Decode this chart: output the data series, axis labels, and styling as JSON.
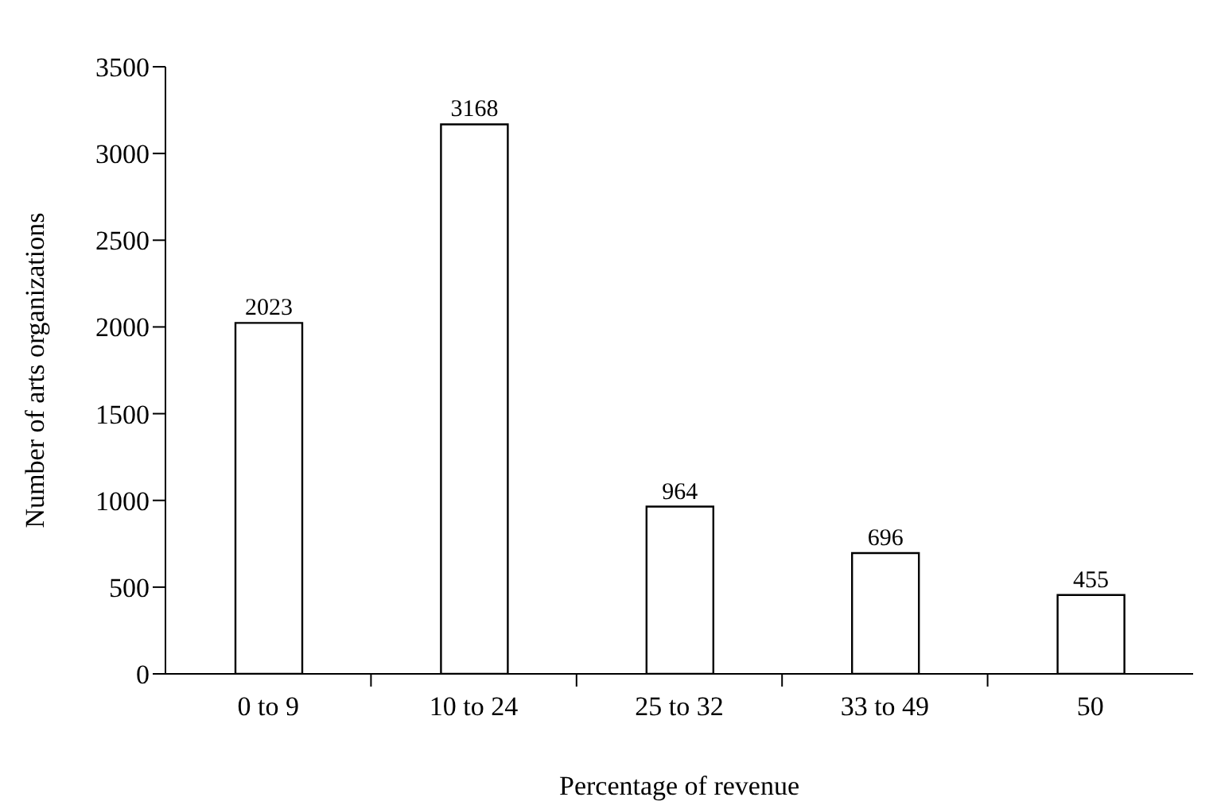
{
  "chart_data": {
    "type": "bar",
    "xlabel": "Percentage of revenue",
    "ylabel": "Number of arts organizations",
    "categories": [
      "0 to 9",
      "10 to 24",
      "25 to 32",
      "33 to 49",
      "50"
    ],
    "values": [
      2023,
      3168,
      964,
      696,
      455
    ],
    "color": "#ffffff",
    "ylim": [
      0,
      3500
    ],
    "yticks": [
      0,
      500,
      1000,
      1500,
      2000,
      2500,
      3000,
      3500
    ],
    "data_labels": true
  }
}
